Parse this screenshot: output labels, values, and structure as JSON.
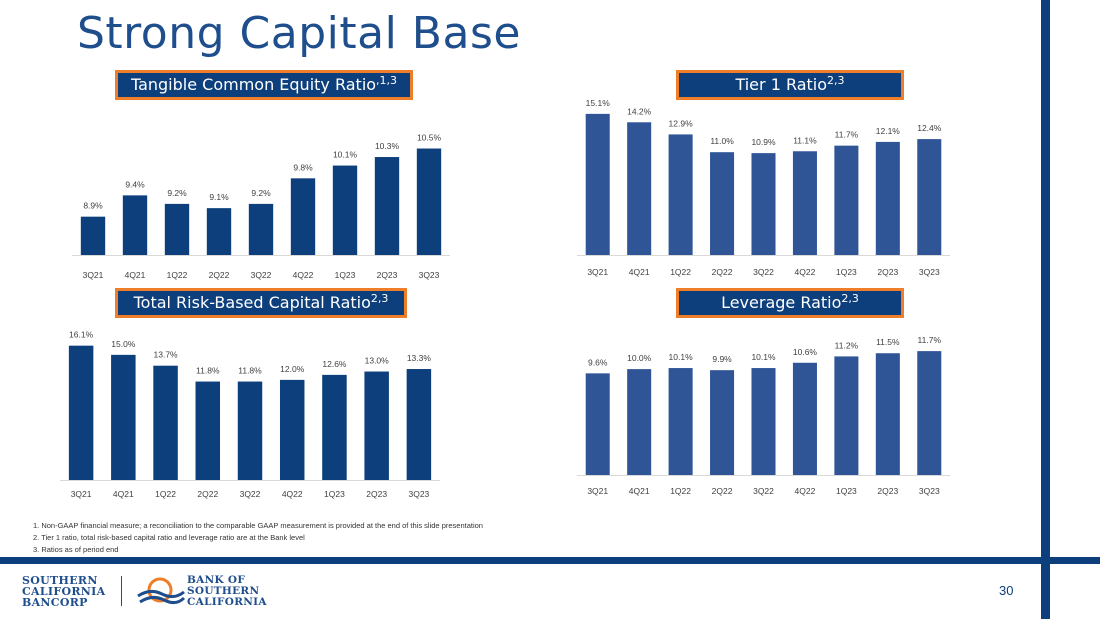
{
  "page": {
    "title": "Strong Capital Base",
    "page_number": "30",
    "colors": {
      "bar": "#0d3f7c",
      "bar_alt": "#2f5597",
      "accent": "#ef7e2a",
      "title": "#1f4e8c"
    }
  },
  "labels": {
    "tce": {
      "text": "Tangible Common Equity Ratio",
      "sup": ",1,3"
    },
    "tier1": {
      "text": "Tier 1 Ratio",
      "sup": "2,3"
    },
    "trbc": {
      "text": "Total Risk-Based Capital Ratio",
      "sup": "2,3"
    },
    "leverage": {
      "text": "Leverage Ratio",
      "sup": "2,3"
    }
  },
  "chart_data": [
    {
      "id": "tce",
      "type": "bar",
      "title": "Tangible Common Equity Ratio",
      "categories": [
        "3Q21",
        "4Q21",
        "1Q22",
        "2Q22",
        "3Q22",
        "4Q22",
        "1Q23",
        "2Q23",
        "3Q23"
      ],
      "values": [
        8.9,
        9.4,
        9.2,
        9.1,
        9.2,
        9.8,
        10.1,
        10.3,
        10.5
      ],
      "value_labels": [
        "8.9%",
        "9.4%",
        "9.2%",
        "9.1%",
        "9.2%",
        "9.8%",
        "10.1%",
        "10.3%",
        "10.5%"
      ],
      "ylim": [
        8.0,
        10.7
      ],
      "color": "#0d3f7c"
    },
    {
      "id": "tier1",
      "type": "bar",
      "title": "Tier 1 Ratio",
      "categories": [
        "3Q21",
        "4Q21",
        "1Q22",
        "2Q22",
        "3Q22",
        "4Q22",
        "1Q23",
        "2Q23",
        "3Q23"
      ],
      "values": [
        15.1,
        14.2,
        12.9,
        11.0,
        10.9,
        11.1,
        11.7,
        12.1,
        12.4
      ],
      "value_labels": [
        "15.1%",
        "14.2%",
        "12.9%",
        "11.0%",
        "10.9%",
        "11.1%",
        "11.7%",
        "12.1%",
        "12.4%"
      ],
      "ylim": [
        0,
        15.3
      ],
      "color": "#2f5597"
    },
    {
      "id": "trbc",
      "type": "bar",
      "title": "Total Risk-Based Capital Ratio",
      "categories": [
        "3Q21",
        "4Q21",
        "1Q22",
        "2Q22",
        "3Q22",
        "4Q22",
        "1Q23",
        "2Q23",
        "3Q23"
      ],
      "values": [
        16.1,
        15.0,
        13.7,
        11.8,
        11.8,
        12.0,
        12.6,
        13.0,
        13.3
      ],
      "value_labels": [
        "16.1%",
        "15.0%",
        "13.7%",
        "11.8%",
        "11.8%",
        "12.0%",
        "12.6%",
        "13.0%",
        "13.3%"
      ],
      "ylim": [
        0,
        16.3
      ],
      "color": "#0d3f7c"
    },
    {
      "id": "leverage",
      "type": "bar",
      "title": "Leverage Ratio",
      "categories": [
        "3Q21",
        "4Q21",
        "1Q22",
        "2Q22",
        "3Q22",
        "4Q22",
        "1Q23",
        "2Q23",
        "3Q23"
      ],
      "values": [
        9.6,
        10.0,
        10.1,
        9.9,
        10.1,
        10.6,
        11.2,
        11.5,
        11.7
      ],
      "value_labels": [
        "9.6%",
        "10.0%",
        "10.1%",
        "9.9%",
        "10.1%",
        "10.6%",
        "11.2%",
        "11.5%",
        "11.7%"
      ],
      "ylim": [
        0,
        11.9
      ],
      "color": "#2f5597"
    }
  ],
  "footnotes": [
    "1. Non-GAAP financial measure; a reconciliation to the comparable GAAP measurement is provided at the end of this slide presentation",
    "2. Tier 1 ratio, total risk-based capital ratio and leverage ratio are at the Bank level",
    "3. Ratios as of period end"
  ],
  "logos": {
    "bancorp": [
      "Southern",
      "California",
      "Bancorp"
    ],
    "bank": [
      "Bank of",
      "Southern",
      "California"
    ]
  }
}
